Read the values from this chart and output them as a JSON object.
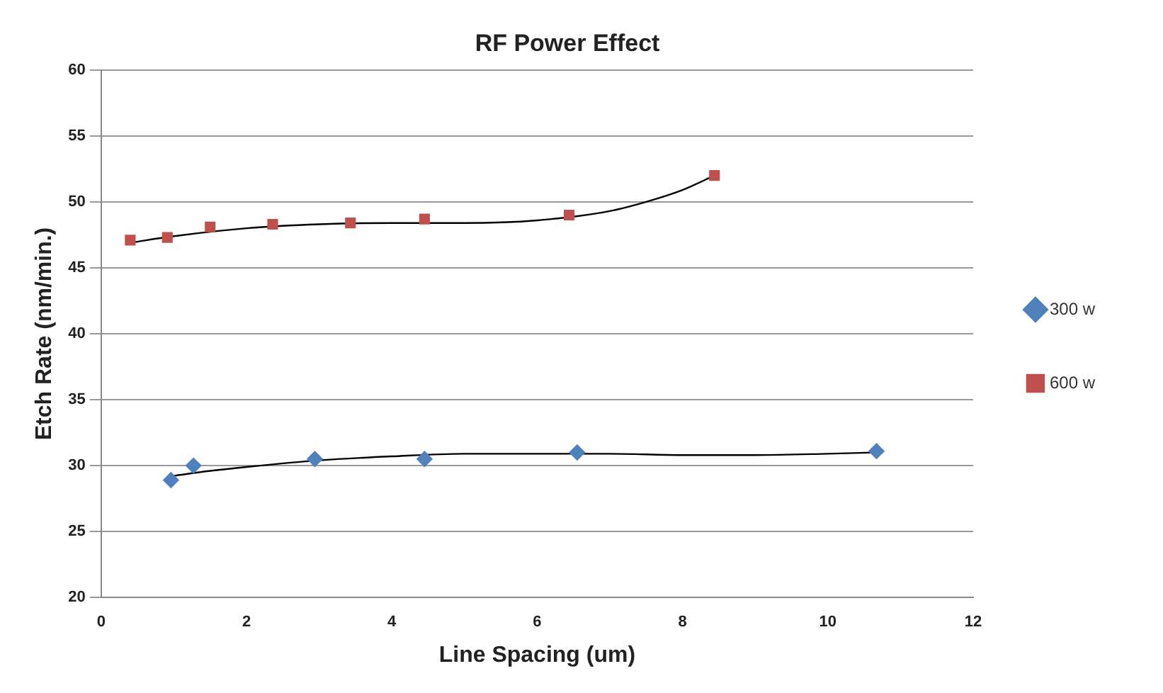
{
  "chart_data": {
    "type": "scatter",
    "title": "RF Power Effect",
    "xlabel": "Line Spacing (um)",
    "ylabel": "Etch Rate (nm/min.)",
    "series": [
      {
        "name": "300 w",
        "color": "#4f81bd",
        "marker": "diamond",
        "x": [
          0.96,
          1.27,
          2.94,
          4.45,
          6.55,
          10.67
        ],
        "values": [
          28.9,
          30.0,
          30.5,
          30.5,
          31.0,
          31.1
        ]
      },
      {
        "name": "600 w",
        "color": "#c0504d",
        "marker": "square",
        "x": [
          0.4,
          0.91,
          1.5,
          2.36,
          3.43,
          4.45,
          6.44,
          8.44
        ],
        "values": [
          47.1,
          47.3,
          48.1,
          48.3,
          48.4,
          48.7,
          49.0,
          52.0
        ]
      },
      {
        "type": "line",
        "color": "#000000",
        "marker": "none",
        "x": [
          0.96,
          1.5,
          2,
          3,
          4,
          5,
          6,
          7,
          8,
          9,
          10,
          10.67
        ],
        "values": [
          29.2,
          29.6,
          29.9,
          30.4,
          30.7,
          30.9,
          30.9,
          30.9,
          30.8,
          30.8,
          30.9,
          31.0
        ]
      },
      {
        "type": "line",
        "color": "#000000",
        "marker": "none",
        "x": [
          0.4,
          1,
          2,
          3,
          4,
          5,
          6,
          7,
          7.5,
          8,
          8.44
        ],
        "values": [
          46.9,
          47.4,
          48.0,
          48.3,
          48.4,
          48.4,
          48.6,
          49.3,
          50.0,
          50.9,
          52.0
        ]
      }
    ],
    "xlim": [
      0,
      12
    ],
    "xticks": [
      0,
      2,
      4,
      6,
      8,
      10,
      12
    ],
    "ylim": [
      20,
      60
    ],
    "yticks": [
      20,
      25,
      30,
      35,
      40,
      45,
      50,
      55,
      60
    ],
    "grid": "y",
    "legend": "right"
  }
}
